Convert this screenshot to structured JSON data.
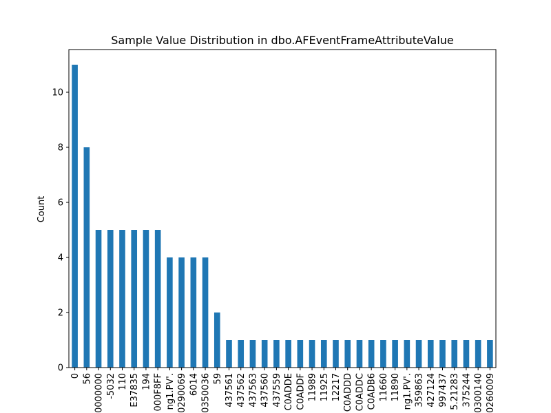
{
  "chart_data": {
    "type": "bar",
    "title": "Sample Value Distribution in dbo.AFEventFrameAttributeValue",
    "xlabel": "",
    "ylabel": "Count",
    "ylim": [
      0,
      11.55
    ],
    "yticks": [
      0,
      2,
      4,
      6,
      8,
      10
    ],
    "bar_color": "#1f77b4",
    "grid": false,
    "categories": [
      "0",
      "56",
      "0000000",
      "-5032",
      "110",
      "E37835",
      "194",
      "000F8FF",
      "ng1.PV'.",
      "0290069",
      "6014",
      "0350036",
      "59",
      "437561",
      "437562",
      "437563",
      "437560",
      "437559",
      "C0ADDE",
      "C0ADDF",
      "11989",
      "11925",
      "12217",
      "C0ADDD",
      "C0ADDC",
      "C0ADB6",
      "11660",
      "11890",
      "ng1.PV'.",
      "359863",
      "427124",
      "997437",
      "5.21283",
      "375244",
      "0300140",
      "0260009"
    ],
    "values": [
      11,
      8,
      5,
      5,
      5,
      5,
      5,
      5,
      4,
      4,
      4,
      4,
      2,
      1,
      1,
      1,
      1,
      1,
      1,
      1,
      1,
      1,
      1,
      1,
      1,
      1,
      1,
      1,
      1,
      1,
      1,
      1,
      1,
      1,
      1,
      1
    ]
  }
}
